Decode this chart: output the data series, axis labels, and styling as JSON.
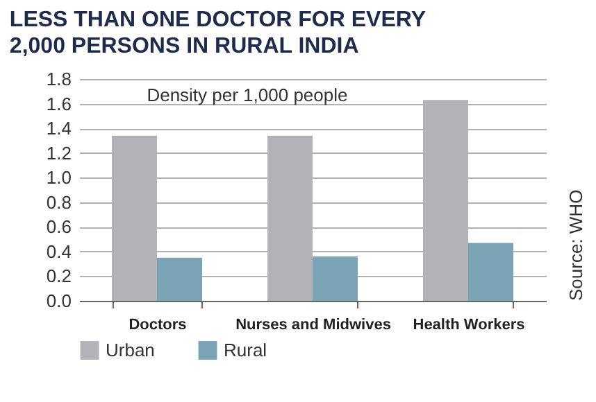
{
  "chart_data": {
    "type": "bar",
    "title": "LESS THAN ONE DOCTOR FOR EVERY 2,000 PERSONS IN RURAL INDIA",
    "categories": [
      "Doctors",
      "Nurses and Midwives",
      "Health Workers"
    ],
    "series": [
      {
        "name": "Urban",
        "color": "#b1b3b6",
        "values": [
          1.34,
          1.34,
          1.63
        ]
      },
      {
        "name": "Rural",
        "color": "#7ba3b6",
        "values": [
          0.35,
          0.36,
          0.47
        ]
      }
    ],
    "ylim": [
      0,
      1.8
    ],
    "yticks": [
      {
        "value": 0,
        "label": "0.0"
      },
      0.2,
      0.4,
      0.6,
      0.8,
      {
        "value": 1,
        "label": "1.0"
      },
      1.2,
      1.4,
      1.6,
      1.8
    ],
    "grid": "y",
    "legend": "bottom",
    "annotations": [
      "Density per 1,000 people",
      "Source: WHO"
    ]
  }
}
